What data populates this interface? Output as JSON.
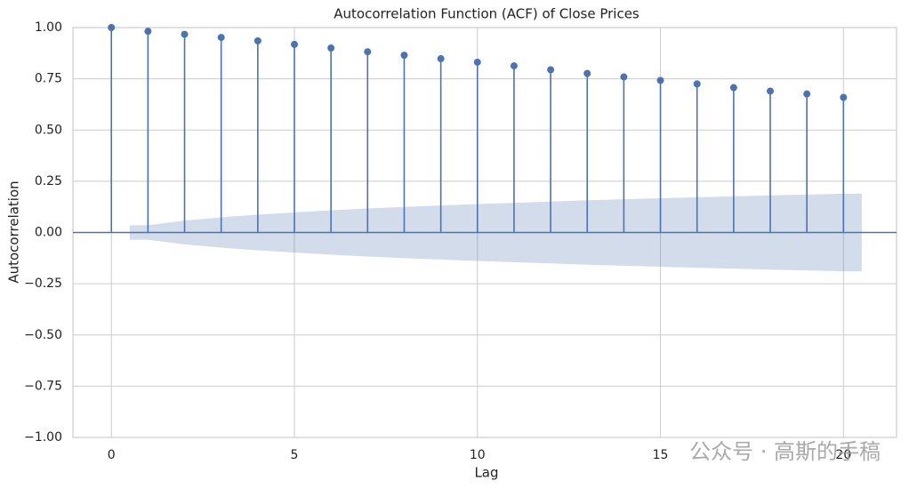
{
  "chart_data": {
    "type": "stem",
    "title": "Autocorrelation Function (ACF) of Close Prices",
    "xlabel": "Lag",
    "ylabel": "Autocorrelation",
    "x": [
      0,
      1,
      2,
      3,
      4,
      5,
      6,
      7,
      8,
      9,
      10,
      11,
      12,
      13,
      14,
      15,
      16,
      17,
      18,
      19,
      20
    ],
    "values": [
      1.0,
      0.982,
      0.967,
      0.952,
      0.935,
      0.918,
      0.9,
      0.882,
      0.865,
      0.848,
      0.831,
      0.813,
      0.794,
      0.776,
      0.759,
      0.742,
      0.725,
      0.707,
      0.69,
      0.676,
      0.659
    ],
    "color": "#4c72b0",
    "confint": {
      "x": [
        0.5,
        1,
        2,
        3,
        4,
        5,
        6,
        7,
        8,
        9,
        10,
        11,
        12,
        13,
        14,
        15,
        16,
        17,
        18,
        19,
        20,
        20.5
      ],
      "upper": [
        0.035,
        0.035,
        0.058,
        0.074,
        0.087,
        0.098,
        0.108,
        0.117,
        0.125,
        0.132,
        0.139,
        0.145,
        0.151,
        0.157,
        0.162,
        0.167,
        0.172,
        0.176,
        0.181,
        0.185,
        0.189,
        0.189
      ],
      "lower": [
        -0.035,
        -0.035,
        -0.058,
        -0.074,
        -0.087,
        -0.098,
        -0.108,
        -0.117,
        -0.125,
        -0.132,
        -0.139,
        -0.145,
        -0.151,
        -0.157,
        -0.162,
        -0.167,
        -0.172,
        -0.176,
        -0.181,
        -0.185,
        -0.189,
        -0.189
      ],
      "color": "#4c72b0"
    },
    "xlim": [
      -1.05,
      21.45
    ],
    "xticks": [
      0,
      5,
      10,
      15,
      20
    ],
    "ylim": [
      -1,
      1
    ],
    "yticks": [
      {
        "value": -1,
        "label": "−1.00"
      },
      {
        "value": -0.75,
        "label": "−0.75"
      },
      {
        "value": -0.5,
        "label": "−0.50"
      },
      {
        "value": -0.25,
        "label": "−0.25"
      },
      {
        "value": 0,
        "label": "0.00"
      },
      {
        "value": 0.25,
        "label": "0.25"
      },
      {
        "value": 0.5,
        "label": "0.50"
      },
      {
        "value": 0.75,
        "label": "0.75"
      },
      {
        "value": 1,
        "label": "1.00"
      }
    ],
    "grid": true,
    "watermark": "公众号 · 高斯的手稿"
  }
}
